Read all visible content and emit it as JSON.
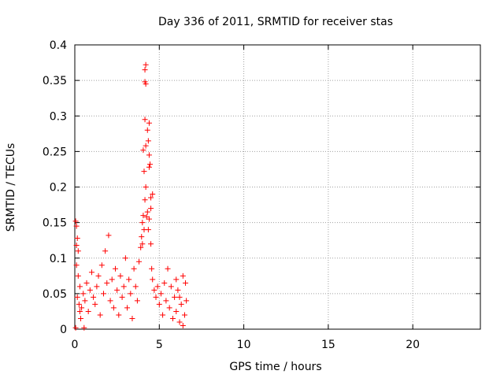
{
  "chart_data": {
    "type": "scatter",
    "title": "Day 336 of 2011, SRMTID for receiver stas",
    "xlabel": "GPS time / hours",
    "ylabel": "SRMTID / TECUs",
    "xlim": [
      0,
      24
    ],
    "ylim": [
      0,
      0.4
    ],
    "xticks": [
      0,
      5,
      10,
      15,
      20
    ],
    "xtick_labels": [
      "0",
      "5",
      "10",
      "15",
      "20"
    ],
    "yticks": [
      0,
      0.05,
      0.1,
      0.15,
      0.2,
      0.25,
      0.3,
      0.35,
      0.4
    ],
    "ytick_labels": [
      "0",
      "0.05",
      "0.1",
      "0.15",
      "0.2",
      "0.25",
      "0.3",
      "0.35",
      "0.4"
    ],
    "grid": true,
    "marker": "+",
    "color": "#ff0000",
    "series": [
      {
        "name": "SRMTID",
        "points": [
          [
            0.05,
            0.152
          ],
          [
            0.1,
            0.145
          ],
          [
            0.15,
            0.128
          ],
          [
            0.1,
            0.118
          ],
          [
            0.2,
            0.11
          ],
          [
            0.1,
            0.09
          ],
          [
            0.2,
            0.075
          ],
          [
            0.3,
            0.06
          ],
          [
            0.15,
            0.045
          ],
          [
            0.25,
            0.035
          ],
          [
            0.3,
            0.025
          ],
          [
            0.05,
            0.002
          ],
          [
            0.35,
            0.015
          ],
          [
            0.4,
            0.03
          ],
          [
            0.5,
            0.05
          ],
          [
            0.55,
            0.002
          ],
          [
            0.6,
            0.04
          ],
          [
            0.7,
            0.065
          ],
          [
            0.8,
            0.025
          ],
          [
            0.9,
            0.055
          ],
          [
            1.0,
            0.08
          ],
          [
            1.1,
            0.045
          ],
          [
            1.2,
            0.035
          ],
          [
            1.3,
            0.06
          ],
          [
            1.4,
            0.075
          ],
          [
            1.5,
            0.02
          ],
          [
            1.6,
            0.09
          ],
          [
            1.7,
            0.05
          ],
          [
            1.8,
            0.11
          ],
          [
            1.9,
            0.065
          ],
          [
            2.0,
            0.132
          ],
          [
            2.1,
            0.04
          ],
          [
            2.2,
            0.07
          ],
          [
            2.3,
            0.03
          ],
          [
            2.4,
            0.085
          ],
          [
            2.5,
            0.055
          ],
          [
            2.6,
            0.02
          ],
          [
            2.7,
            0.075
          ],
          [
            2.8,
            0.045
          ],
          [
            2.9,
            0.06
          ],
          [
            3.0,
            0.1
          ],
          [
            3.1,
            0.03
          ],
          [
            3.2,
            0.07
          ],
          [
            3.3,
            0.05
          ],
          [
            3.4,
            0.015
          ],
          [
            3.5,
            0.085
          ],
          [
            3.6,
            0.06
          ],
          [
            3.7,
            0.04
          ],
          [
            3.8,
            0.095
          ],
          [
            3.9,
            0.115
          ],
          [
            3.95,
            0.13
          ],
          [
            4.0,
            0.15
          ],
          [
            4.05,
            0.16
          ],
          [
            4.0,
            0.12
          ],
          [
            4.1,
            0.14
          ],
          [
            4.15,
            0.182
          ],
          [
            4.2,
            0.2
          ],
          [
            4.1,
            0.222
          ],
          [
            4.05,
            0.252
          ],
          [
            4.2,
            0.258
          ],
          [
            4.15,
            0.295
          ],
          [
            4.3,
            0.28
          ],
          [
            4.35,
            0.265
          ],
          [
            4.4,
            0.29
          ],
          [
            4.4,
            0.245
          ],
          [
            4.45,
            0.232
          ],
          [
            4.4,
            0.228
          ],
          [
            4.15,
            0.348
          ],
          [
            4.2,
            0.345
          ],
          [
            4.15,
            0.365
          ],
          [
            4.2,
            0.372
          ],
          [
            4.5,
            0.185
          ],
          [
            4.6,
            0.19
          ],
          [
            4.5,
            0.17
          ],
          [
            4.3,
            0.165
          ],
          [
            4.25,
            0.158
          ],
          [
            4.35,
            0.14
          ],
          [
            4.4,
            0.155
          ],
          [
            4.5,
            0.12
          ],
          [
            4.55,
            0.085
          ],
          [
            4.6,
            0.07
          ],
          [
            4.7,
            0.055
          ],
          [
            4.8,
            0.045
          ],
          [
            4.9,
            0.06
          ],
          [
            5.0,
            0.035
          ],
          [
            5.1,
            0.05
          ],
          [
            5.2,
            0.02
          ],
          [
            5.3,
            0.065
          ],
          [
            5.4,
            0.04
          ],
          [
            5.5,
            0.085
          ],
          [
            5.6,
            0.03
          ],
          [
            5.7,
            0.06
          ],
          [
            5.8,
            0.015
          ],
          [
            5.9,
            0.045
          ],
          [
            6.0,
            0.025
          ],
          [
            6.1,
            0.055
          ],
          [
            6.2,
            0.01
          ],
          [
            6.3,
            0.035
          ],
          [
            6.4,
            0.075
          ],
          [
            6.5,
            0.02
          ],
          [
            6.55,
            0.065
          ],
          [
            6.6,
            0.04
          ],
          [
            6.4,
            0.005
          ],
          [
            6.2,
            0.045
          ],
          [
            6.0,
            0.07
          ]
        ]
      }
    ]
  }
}
